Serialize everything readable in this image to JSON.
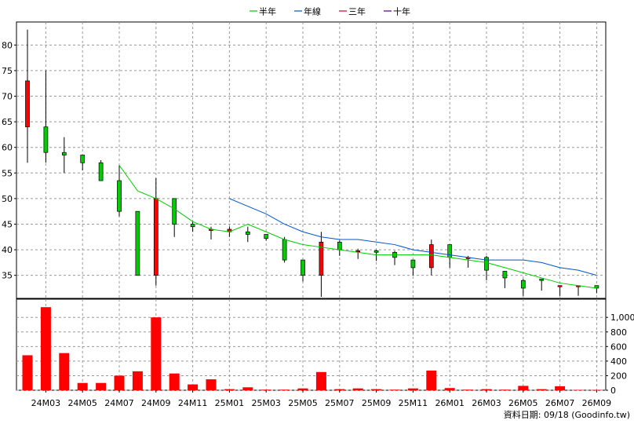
{
  "chart_data": {
    "type": "candlestick",
    "legend": {
      "position": "top-center",
      "items": [
        {
          "label": "半年",
          "color": "#00cc00"
        },
        {
          "label": "年線",
          "color": "#0055cc"
        },
        {
          "label": "三年",
          "color": "#cc0033"
        },
        {
          "label": "十年",
          "color": "#4b0082"
        }
      ]
    },
    "colors": {
      "up": "#ff0000",
      "down": "#00cc00",
      "volume": "#ff0000",
      "grid": "#999999",
      "border": "#000000"
    },
    "price_axis": {
      "side": "left",
      "ylim": [
        30.5,
        84.5
      ],
      "ticks": [
        35,
        40,
        45,
        50,
        55,
        60,
        65,
        70,
        75,
        80
      ]
    },
    "volume_axis": {
      "side": "right",
      "ylim": [
        0,
        1250
      ],
      "ticks": [
        0,
        200,
        400,
        600,
        800,
        1000
      ],
      "tick_labels": [
        "0",
        "200",
        "400",
        "600",
        "800",
        "1,000"
      ]
    },
    "x_tick_labels": [
      "24M03",
      "24M05",
      "24M07",
      "24M09",
      "24M11",
      "25M01",
      "25M03",
      "25M05",
      "25M07",
      "25M09",
      "25M11",
      "26M01",
      "26M03",
      "26M05",
      "26M07",
      "26M09"
    ],
    "grid": true,
    "source_text": "資料日期: 09/18  (Goodinfo.tw)",
    "candles": [
      {
        "month": "24M02",
        "open": 64,
        "high": 83,
        "low": 57,
        "close": 73,
        "volume": 480
      },
      {
        "month": "24M03",
        "open": 64,
        "high": 75,
        "low": 57,
        "close": 59,
        "volume": 1140
      },
      {
        "month": "24M04",
        "open": 59,
        "high": 62,
        "low": 55,
        "close": 58.5,
        "volume": 510
      },
      {
        "month": "24M05",
        "open": 58.5,
        "high": 58.5,
        "low": 55.5,
        "close": 57,
        "volume": 100
      },
      {
        "month": "24M06",
        "open": 57,
        "high": 57.5,
        "low": 53.5,
        "close": 53.5,
        "volume": 100
      },
      {
        "month": "24M07",
        "open": 53.5,
        "high": 56.5,
        "low": 46.5,
        "close": 47.5,
        "volume": 200
      },
      {
        "month": "24M08",
        "open": 47.5,
        "high": 47.5,
        "low": 35,
        "close": 35,
        "volume": 260
      },
      {
        "month": "24M09",
        "open": 35,
        "high": 54,
        "low": 33,
        "close": 50,
        "volume": 1000
      },
      {
        "month": "24M10",
        "open": 50,
        "high": 50,
        "low": 42.5,
        "close": 45,
        "volume": 230
      },
      {
        "month": "24M11",
        "open": 45,
        "high": 45.5,
        "low": 43.5,
        "close": 44.5,
        "volume": 80
      },
      {
        "month": "24M12",
        "open": 44,
        "high": 44.5,
        "low": 42,
        "close": 44,
        "volume": 150
      },
      {
        "month": "25M01",
        "open": 43.5,
        "high": 44.5,
        "low": 42.5,
        "close": 44,
        "volume": 15
      },
      {
        "month": "25M02",
        "open": 43.5,
        "high": 44.5,
        "low": 41.5,
        "close": 43,
        "volume": 40
      },
      {
        "month": "25M03",
        "open": 43,
        "high": 43,
        "low": 41.8,
        "close": 42.2,
        "volume": 8
      },
      {
        "month": "25M04",
        "open": 42,
        "high": 42.5,
        "low": 37.5,
        "close": 38,
        "volume": 8
      },
      {
        "month": "25M05",
        "open": 38,
        "high": 38,
        "low": 33.8,
        "close": 35,
        "volume": 25
      },
      {
        "month": "25M06",
        "open": 35,
        "high": 43.5,
        "low": 30.8,
        "close": 41.5,
        "volume": 250
      },
      {
        "month": "25M07",
        "open": 41.5,
        "high": 41.8,
        "low": 38.8,
        "close": 40,
        "volume": 15
      },
      {
        "month": "25M08",
        "open": 39.8,
        "high": 40.2,
        "low": 38.2,
        "close": 39.8,
        "volume": 25
      },
      {
        "month": "25M09",
        "open": 39.8,
        "high": 40,
        "low": 37.8,
        "close": 39.5,
        "volume": 15
      },
      {
        "month": "25M10",
        "open": 39.5,
        "high": 39.8,
        "low": 37,
        "close": 38.5,
        "volume": 8
      },
      {
        "month": "25M11",
        "open": 38,
        "high": 38,
        "low": 35,
        "close": 36.5,
        "volume": 25
      },
      {
        "month": "25M12",
        "open": 36.5,
        "high": 42,
        "low": 35,
        "close": 41,
        "volume": 270
      },
      {
        "month": "26M01",
        "open": 41,
        "high": 41,
        "low": 36.5,
        "close": 38.5,
        "volume": 30
      },
      {
        "month": "26M02",
        "open": 38.5,
        "high": 38.8,
        "low": 36.5,
        "close": 38.5,
        "volume": 8
      },
      {
        "month": "26M03",
        "open": 38.5,
        "high": 38.8,
        "low": 34,
        "close": 36,
        "volume": 15
      },
      {
        "month": "26M04",
        "open": 35.8,
        "high": 35.8,
        "low": 32.5,
        "close": 34.5,
        "volume": 8
      },
      {
        "month": "26M05",
        "open": 34,
        "high": 34.3,
        "low": 31,
        "close": 32.5,
        "volume": 60
      },
      {
        "month": "26M06",
        "open": 34.3,
        "high": 34.3,
        "low": 32,
        "close": 34,
        "volume": 15
      },
      {
        "month": "26M07",
        "open": 33,
        "high": 33,
        "low": 31,
        "close": 33,
        "volume": 55
      },
      {
        "month": "26M08",
        "open": 33,
        "high": 33,
        "low": 31,
        "close": 33,
        "volume": 5
      },
      {
        "month": "26M09",
        "open": 33,
        "high": 33,
        "low": 31.5,
        "close": 32.5,
        "volume": 5
      }
    ],
    "series": [
      {
        "name": "半年",
        "color": "#00cc00",
        "x": [
          "24M07",
          "24M08",
          "24M09",
          "24M10",
          "24M11",
          "24M12",
          "25M01",
          "25M02",
          "25M03",
          "25M04",
          "25M05",
          "25M06",
          "25M07",
          "25M08",
          "25M09",
          "25M10",
          "25M11",
          "25M12",
          "26M01",
          "26M02",
          "26M03",
          "26M04",
          "26M05",
          "26M06",
          "26M07",
          "26M08",
          "26M09"
        ],
        "values": [
          56.5,
          51.5,
          50,
          48,
          45.5,
          44,
          43.5,
          45,
          43.5,
          42,
          41,
          40.5,
          40,
          39.5,
          39,
          39,
          39,
          39,
          38.5,
          38,
          37.5,
          36.5,
          35.5,
          34.5,
          33.5,
          33,
          32.5
        ]
      },
      {
        "name": "年線",
        "color": "#0055cc",
        "x": [
          "25M01",
          "25M02",
          "25M03",
          "25M04",
          "25M05",
          "25M06",
          "25M07",
          "25M08",
          "25M09",
          "25M10",
          "25M11",
          "25M12",
          "26M01",
          "26M02",
          "26M03",
          "26M04",
          "26M05",
          "26M06",
          "26M07",
          "26M08",
          "26M09"
        ],
        "values": [
          50,
          48.5,
          47,
          45,
          43.5,
          42.5,
          42,
          42,
          41.5,
          41,
          40,
          39.5,
          39,
          38.5,
          38,
          38,
          38,
          37.5,
          36.5,
          36,
          35
        ]
      }
    ]
  }
}
